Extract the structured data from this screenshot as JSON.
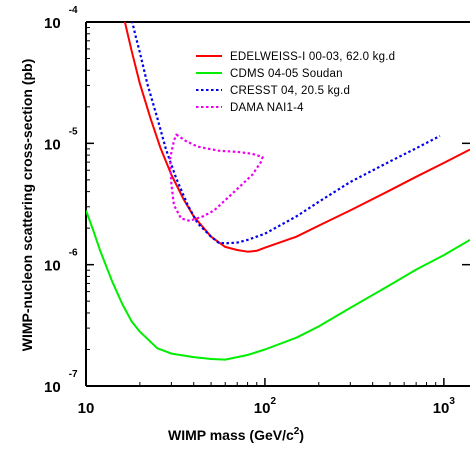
{
  "chart_data": {
    "type": "line",
    "xlabel": "WIMP mass (GeV/c",
    "xlabel_sup": "2",
    "xlabel_end": ")",
    "ylabel": "WIMP-nucleon scattering cross-section (pb)",
    "xscale": "log",
    "yscale": "log",
    "xlim": [
      10,
      1400
    ],
    "ylim": [
      1e-07,
      0.0001
    ],
    "grid": false,
    "legend_position": "top-right",
    "x_ticks": [
      {
        "value": 10,
        "base": "10",
        "exp": ""
      },
      {
        "value": 100,
        "base": "10",
        "exp": "2"
      },
      {
        "value": 1000,
        "base": "10",
        "exp": "3"
      }
    ],
    "y_ticks": [
      {
        "value": 0.0001,
        "base": "10",
        "exp": "-4"
      },
      {
        "value": 1e-05,
        "base": "10",
        "exp": "-5"
      },
      {
        "value": 1e-06,
        "base": "10",
        "exp": "-6"
      },
      {
        "value": 1e-07,
        "base": "10",
        "exp": "-7"
      }
    ],
    "series": [
      {
        "name": "EDELWEISS-I 00-03, 62.0 kg.d",
        "color": "#ff0000",
        "style": "solid",
        "points": [
          [
            16.2,
            0.000112
          ],
          [
            18,
            5.75e-05
          ],
          [
            20,
            3.1e-05
          ],
          [
            23,
            1.59e-05
          ],
          [
            26,
            9.3e-06
          ],
          [
            30,
            5.5e-06
          ],
          [
            35,
            3.5e-06
          ],
          [
            40,
            2.5e-06
          ],
          [
            50,
            1.7e-06
          ],
          [
            60,
            1.4e-06
          ],
          [
            70,
            1.32e-06
          ],
          [
            80,
            1.28e-06
          ],
          [
            90,
            1.3e-06
          ],
          [
            100,
            1.38e-06
          ],
          [
            150,
            1.7e-06
          ],
          [
            200,
            2.1e-06
          ],
          [
            300,
            2.8e-06
          ],
          [
            500,
            4.1e-06
          ],
          [
            700,
            5.3e-06
          ],
          [
            1000,
            6.9e-06
          ],
          [
            1400,
            8.9e-06
          ]
        ]
      },
      {
        "name": "CDMS 04-05 Soudan",
        "color": "#00ee00",
        "style": "solid",
        "points": [
          [
            10,
            2.8e-06
          ],
          [
            11,
            1.9e-06
          ],
          [
            12,
            1.3e-06
          ],
          [
            14,
            7.3e-07
          ],
          [
            16,
            4.7e-07
          ],
          [
            18,
            3.4e-07
          ],
          [
            20,
            2.8e-07
          ],
          [
            25,
            2.05e-07
          ],
          [
            30,
            1.85e-07
          ],
          [
            40,
            1.73e-07
          ],
          [
            50,
            1.67e-07
          ],
          [
            60,
            1.65e-07
          ],
          [
            80,
            1.8e-07
          ],
          [
            100,
            2e-07
          ],
          [
            150,
            2.5e-07
          ],
          [
            200,
            3.1e-07
          ],
          [
            300,
            4.4e-07
          ],
          [
            500,
            6.8e-07
          ],
          [
            700,
            9.1e-07
          ],
          [
            1000,
            1.2e-06
          ],
          [
            1400,
            1.6e-06
          ]
        ]
      },
      {
        "name": "CRESST 04, 20.5 kg.d",
        "color": "#0000ee",
        "style": "dotted",
        "points": [
          [
            17.8,
            0.000112
          ],
          [
            19,
            7.5e-05
          ],
          [
            20,
            5.6e-05
          ],
          [
            22,
            3.1e-05
          ],
          [
            25,
            1.63e-05
          ],
          [
            28,
            8.9e-06
          ],
          [
            32,
            5.1e-06
          ],
          [
            37,
            3.1e-06
          ],
          [
            42,
            2.2e-06
          ],
          [
            50,
            1.7e-06
          ],
          [
            55,
            1.52e-06
          ],
          [
            60,
            1.5e-06
          ],
          [
            70,
            1.52e-06
          ],
          [
            80,
            1.6e-06
          ],
          [
            100,
            1.8e-06
          ],
          [
            150,
            2.5e-06
          ],
          [
            200,
            3.3e-06
          ],
          [
            300,
            4.8e-06
          ],
          [
            500,
            7.1e-06
          ],
          [
            700,
            9.1e-06
          ],
          [
            950,
            1.15e-05
          ]
        ]
      },
      {
        "name": "DAMA NAI1-4",
        "color": "#ee00ee",
        "style": "dotted",
        "closed": true,
        "points": [
          [
            32,
            1.18e-05
          ],
          [
            36,
            1.05e-05
          ],
          [
            42,
            9.4e-06
          ],
          [
            55,
            8.7e-06
          ],
          [
            70,
            8.5e-06
          ],
          [
            85,
            8.2e-06
          ],
          [
            97,
            7.7e-06
          ],
          [
            95,
            7e-06
          ],
          [
            85,
            5.5e-06
          ],
          [
            70,
            4.2e-06
          ],
          [
            60,
            3.4e-06
          ],
          [
            52,
            2.8e-06
          ],
          [
            45,
            2.5e-06
          ],
          [
            38,
            2.3e-06
          ],
          [
            34,
            2.4e-06
          ],
          [
            31,
            3.1e-06
          ],
          [
            30,
            4.6e-06
          ],
          [
            29.5,
            7.5e-06
          ],
          [
            31,
            1.05e-05
          ]
        ]
      }
    ]
  }
}
